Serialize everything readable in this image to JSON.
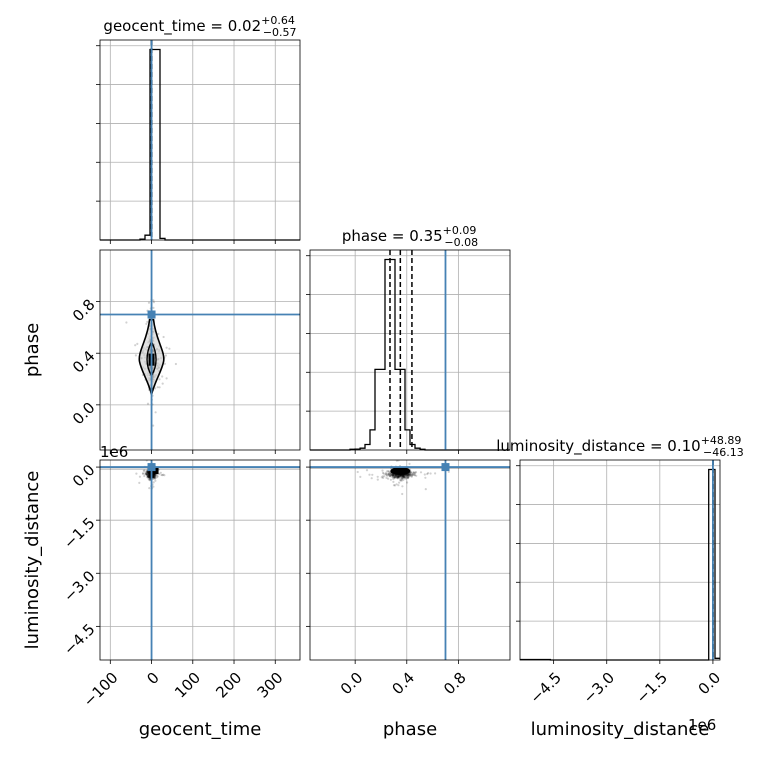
{
  "chart_data": {
    "type": "corner",
    "parameters": [
      "geocent_time",
      "phase",
      "luminosity_distance"
    ],
    "truths": {
      "geocent_time": 0.0,
      "phase": 0.7,
      "luminosity_distance": 0.0
    },
    "titles": [
      {
        "param": "geocent_time",
        "prefix": "geocent_time = ",
        "median": "0.02",
        "upper": "+0.64",
        "lower": "−0.57"
      },
      {
        "param": "phase",
        "prefix": "phase = ",
        "median": "0.35",
        "upper": "+0.09",
        "lower": "−0.08"
      },
      {
        "param": "luminosity_distance",
        "prefix": "luminosity_distance = ",
        "median": "0.10",
        "upper": "+48.89",
        "lower": "−46.13"
      }
    ],
    "axes": {
      "geocent_time": {
        "range": [
          -125,
          360
        ],
        "ticks": [
          -100,
          0,
          100,
          200,
          300
        ],
        "tick_labels": [
          "−100",
          "0",
          "100",
          "200",
          "300"
        ]
      },
      "phase": {
        "range": [
          -0.35,
          1.2
        ],
        "ticks": [
          0.0,
          0.4,
          0.8
        ],
        "tick_labels": [
          "0.0",
          "0.4",
          "0.8"
        ]
      },
      "luminosity_distance": {
        "range": [
          -5450000.0,
          200000.0
        ],
        "ticks": [
          -4500000.0,
          -3000000.0,
          -1500000.0,
          0.0
        ],
        "tick_labels": [
          "−4.5",
          "−3.0",
          "−1.5",
          "0.0"
        ],
        "offset_text": "1e6"
      }
    },
    "quantiles": {
      "geocent_time": [
        -0.55,
        0.02,
        0.66
      ],
      "phase": [
        0.27,
        0.35,
        0.44
      ],
      "luminosity_distance": [
        -46.03,
        0.1,
        48.99
      ]
    },
    "hist_geocent_time": {
      "edges": [
        -125,
        -112.9,
        -100.8,
        -88.6,
        -76.5,
        -64.4,
        -52.3,
        -40.1,
        -28,
        -15.9,
        -3.8,
        8.4,
        20.5,
        32.6,
        44.8,
        56.9,
        69,
        81.1,
        93.3,
        105.4,
        117.5,
        129.6,
        141.8,
        153.9,
        166,
        178.1,
        190.3,
        202.4,
        214.5,
        226.6,
        238.8,
        250.9,
        263,
        275.1,
        287.3,
        299.4,
        311.5,
        323.6,
        335.8,
        347.9,
        360
      ],
      "counts": [
        0,
        0,
        0,
        0,
        0,
        0,
        0,
        0,
        0.5,
        3,
        118,
        118,
        1,
        0,
        0,
        0,
        0,
        0,
        0,
        0,
        0,
        0,
        0,
        0,
        0,
        0,
        0,
        0,
        0,
        0,
        0,
        0,
        0,
        0,
        0,
        0,
        0,
        0,
        0,
        0
      ]
    },
    "hist_phase": {
      "edges": [
        -0.35,
        -0.311,
        -0.273,
        -0.234,
        -0.195,
        -0.156,
        -0.118,
        -0.079,
        -0.04,
        -0.001,
        0.038,
        0.076,
        0.115,
        0.154,
        0.193,
        0.231,
        0.27,
        0.309,
        0.348,
        0.386,
        0.425,
        0.464,
        0.503,
        0.541,
        0.58,
        0.619,
        0.658,
        0.697,
        0.735,
        0.774,
        0.813,
        0.852,
        0.891,
        0.929,
        0.968,
        1.007,
        1.046,
        1.084,
        1.123,
        1.162,
        1.2
      ],
      "counts": [
        0,
        0,
        0,
        0,
        0,
        0,
        0,
        0,
        0.4,
        0.5,
        1,
        3,
        11,
        44,
        44,
        104,
        104,
        44,
        44,
        11,
        3,
        1,
        0.4,
        0,
        0,
        0,
        0,
        0,
        0,
        0,
        0,
        0,
        0,
        0,
        0,
        0,
        0,
        0,
        0,
        0
      ]
    },
    "hist_luminosity_distance": {
      "edges": [
        -5450000.0,
        -4590000.0,
        -3740000.0,
        -2880000.0,
        -2020000.0,
        -1160000.0,
        -300000.0,
        -120000.0,
        60000.0,
        200000.0
      ],
      "counts": [
        0.3,
        0,
        0,
        0,
        0,
        0,
        0,
        114,
        1
      ]
    }
  }
}
